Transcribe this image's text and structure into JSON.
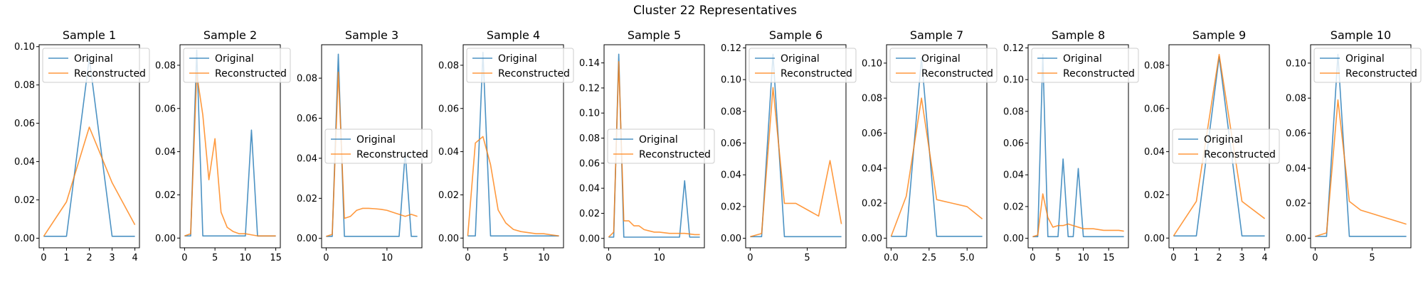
{
  "figure": {
    "title": "Cluster 22 Representatives"
  },
  "colors": {
    "original": "#1f77b4",
    "reconstructed": "#ff7f0e"
  },
  "legend_labels": [
    "Original",
    "Reconstructed"
  ],
  "chart_data": [
    {
      "type": "line",
      "title": "Sample 1",
      "xlim": [
        -0.2,
        4.2
      ],
      "ylim": [
        -0.005,
        0.101
      ],
      "xticks": [
        0,
        1,
        2,
        3,
        4
      ],
      "yticks": [
        0,
        0.02,
        0.04,
        0.06,
        0.08,
        0.1
      ],
      "ytick_labels": [
        "0.00",
        "0.02",
        "0.04",
        "0.06",
        "0.08",
        "0.10"
      ],
      "legend": "upper-left",
      "series": [
        {
          "name": "Original",
          "x": [
            0,
            1,
            2,
            3,
            4
          ],
          "y": [
            0.001,
            0.001,
            0.094,
            0.001,
            0.001
          ]
        },
        {
          "name": "Reconstructed",
          "x": [
            0,
            1,
            2,
            3,
            4
          ],
          "y": [
            0.001,
            0.019,
            0.058,
            0.029,
            0.007
          ]
        }
      ]
    },
    {
      "type": "line",
      "title": "Sample 2",
      "xlim": [
        -0.75,
        15.75
      ],
      "ylim": [
        -0.0045,
        0.0895
      ],
      "xticks": [
        0,
        5,
        10,
        15
      ],
      "yticks": [
        0,
        0.02,
        0.04,
        0.06,
        0.08
      ],
      "ytick_labels": [
        "0.00",
        "0.02",
        "0.04",
        "0.06",
        "0.08"
      ],
      "legend": "upper-left",
      "series": [
        {
          "name": "Original",
          "x": [
            0,
            1,
            2,
            3,
            4,
            5,
            6,
            7,
            8,
            9,
            10,
            11,
            12,
            13,
            14,
            15
          ],
          "y": [
            0.001,
            0.001,
            0.087,
            0.001,
            0.001,
            0.001,
            0.001,
            0.001,
            0.001,
            0.001,
            0.001,
            0.05,
            0.001,
            0.001,
            0.001,
            0.001
          ]
        },
        {
          "name": "Reconstructed",
          "x": [
            0,
            1,
            2,
            3,
            4,
            5,
            6,
            7,
            8,
            9,
            10,
            11,
            12,
            13,
            14,
            15
          ],
          "y": [
            0.001,
            0.002,
            0.076,
            0.057,
            0.027,
            0.046,
            0.012,
            0.005,
            0.003,
            0.002,
            0.002,
            0.0015,
            0.001,
            0.001,
            0.001,
            0.001
          ]
        }
      ]
    },
    {
      "type": "line",
      "title": "Sample 3",
      "xlim": [
        -0.75,
        15.75
      ],
      "ylim": [
        -0.0047,
        0.0967
      ],
      "xticks": [
        0,
        10
      ],
      "yticks": [
        0,
        0.02,
        0.04,
        0.06,
        0.08
      ],
      "ytick_labels": [
        "0.00",
        "0.02",
        "0.04",
        "0.06",
        "0.08"
      ],
      "legend": "center-left",
      "series": [
        {
          "name": "Original",
          "x": [
            0,
            1,
            2,
            3,
            4,
            5,
            6,
            7,
            8,
            9,
            10,
            11,
            12,
            13,
            14,
            15
          ],
          "y": [
            0.001,
            0.001,
            0.092,
            0.001,
            0.001,
            0.001,
            0.001,
            0.001,
            0.001,
            0.001,
            0.001,
            0.001,
            0.001,
            0.043,
            0.001,
            0.001
          ]
        },
        {
          "name": "Reconstructed",
          "x": [
            0,
            1,
            2,
            3,
            4,
            5,
            6,
            7,
            8,
            9,
            10,
            11,
            12,
            13,
            14,
            15
          ],
          "y": [
            0.001,
            0.002,
            0.083,
            0.01,
            0.011,
            0.014,
            0.015,
            0.015,
            0.0148,
            0.0145,
            0.014,
            0.013,
            0.012,
            0.011,
            0.012,
            0.011
          ]
        }
      ]
    },
    {
      "type": "line",
      "title": "Sample 4",
      "xlim": [
        -0.6,
        12.6
      ],
      "ylim": [
        -0.0045,
        0.0895
      ],
      "xticks": [
        0,
        5,
        10
      ],
      "yticks": [
        0,
        0.02,
        0.04,
        0.06,
        0.08
      ],
      "ytick_labels": [
        "0.00",
        "0.02",
        "0.04",
        "0.06",
        "0.08"
      ],
      "legend": "upper-left",
      "series": [
        {
          "name": "Original",
          "x": [
            0,
            1,
            2,
            3,
            4,
            5,
            6,
            7,
            8,
            9,
            10,
            11,
            12
          ],
          "y": [
            0.001,
            0.001,
            0.086,
            0.001,
            0.001,
            0.001,
            0.001,
            0.001,
            0.001,
            0.001,
            0.001,
            0.001,
            0.001
          ]
        },
        {
          "name": "Reconstructed",
          "x": [
            0,
            1,
            2,
            3,
            4,
            5,
            6,
            7,
            8,
            9,
            10,
            11,
            12
          ],
          "y": [
            0.001,
            0.044,
            0.047,
            0.034,
            0.013,
            0.007,
            0.004,
            0.003,
            0.0025,
            0.002,
            0.002,
            0.0015,
            0.001
          ]
        }
      ]
    },
    {
      "type": "line",
      "title": "Sample 5",
      "xlim": [
        -0.9,
        18.9
      ],
      "ylim": [
        -0.0075,
        0.1545
      ],
      "xticks": [
        0,
        10
      ],
      "yticks": [
        0,
        0.02,
        0.04,
        0.06,
        0.08,
        0.1,
        0.12,
        0.14
      ],
      "ytick_labels": [
        "0.00",
        "0.02",
        "0.04",
        "0.06",
        "0.08",
        "0.10",
        "0.12",
        "0.14"
      ],
      "legend": "center-left",
      "series": [
        {
          "name": "Original",
          "x": [
            0,
            1,
            2,
            3,
            4,
            5,
            6,
            7,
            8,
            9,
            10,
            11,
            12,
            13,
            14,
            15,
            16,
            17,
            18
          ],
          "y": [
            0.001,
            0.001,
            0.147,
            0.001,
            0.001,
            0.001,
            0.001,
            0.001,
            0.001,
            0.001,
            0.001,
            0.001,
            0.001,
            0.001,
            0.001,
            0.046,
            0.001,
            0.001,
            0.001
          ]
        },
        {
          "name": "Reconstructed",
          "x": [
            0,
            1,
            2,
            3,
            4,
            5,
            6,
            7,
            8,
            9,
            10,
            11,
            12,
            13,
            14,
            15,
            16,
            17,
            18
          ],
          "y": [
            0.001,
            0.005,
            0.141,
            0.014,
            0.014,
            0.01,
            0.01,
            0.007,
            0.006,
            0.005,
            0.005,
            0.0045,
            0.004,
            0.004,
            0.004,
            0.004,
            0.0035,
            0.003,
            0.003
          ]
        }
      ]
    },
    {
      "type": "line",
      "title": "Sample 6",
      "xlim": [
        -0.4,
        8.4
      ],
      "ylim": [
        -0.006,
        0.122
      ],
      "xticks": [
        0,
        5
      ],
      "yticks": [
        0,
        0.02,
        0.04,
        0.06,
        0.08,
        0.1,
        0.12
      ],
      "ytick_labels": [
        "0.00",
        "0.02",
        "0.04",
        "0.06",
        "0.08",
        "0.10",
        "0.12"
      ],
      "legend": "upper-left",
      "series": [
        {
          "name": "Original",
          "x": [
            0,
            1,
            2,
            3,
            4,
            5,
            6,
            7,
            8
          ],
          "y": [
            0.001,
            0.001,
            0.116,
            0.001,
            0.001,
            0.001,
            0.001,
            0.001,
            0.001
          ]
        },
        {
          "name": "Reconstructed",
          "x": [
            0,
            1,
            2,
            3,
            4,
            5,
            6,
            7,
            8
          ],
          "y": [
            0.001,
            0.003,
            0.095,
            0.022,
            0.022,
            0.018,
            0.014,
            0.049,
            0.009
          ]
        }
      ]
    },
    {
      "type": "line",
      "title": "Sample 7",
      "xlim": [
        -0.3,
        6.3
      ],
      "ylim": [
        -0.0055,
        0.1105
      ],
      "xticks": [
        0,
        2.5,
        5
      ],
      "xtick_labels": [
        "0.0",
        "2.5",
        "5.0"
      ],
      "yticks": [
        0,
        0.02,
        0.04,
        0.06,
        0.08,
        0.1
      ],
      "ytick_labels": [
        "0.00",
        "0.02",
        "0.04",
        "0.06",
        "0.08",
        "0.10"
      ],
      "legend": "upper-left",
      "series": [
        {
          "name": "Original",
          "x": [
            0,
            1,
            2,
            3,
            4,
            5,
            6
          ],
          "y": [
            0.001,
            0.001,
            0.103,
            0.001,
            0.001,
            0.001,
            0.001
          ]
        },
        {
          "name": "Reconstructed",
          "x": [
            0,
            1,
            2,
            3,
            4,
            5,
            6
          ],
          "y": [
            0.001,
            0.024,
            0.08,
            0.022,
            0.02,
            0.018,
            0.011
          ]
        }
      ]
    },
    {
      "type": "line",
      "title": "Sample 8",
      "xlim": [
        -0.9,
        18.9
      ],
      "ylim": [
        -0.006,
        0.122
      ],
      "xticks": [
        0,
        5,
        10,
        15
      ],
      "yticks": [
        0,
        0.02,
        0.04,
        0.06,
        0.08,
        0.1,
        0.12
      ],
      "ytick_labels": [
        "0.00",
        "0.02",
        "0.04",
        "0.06",
        "0.08",
        "0.10",
        "0.12"
      ],
      "legend": "upper-left",
      "series": [
        {
          "name": "Original",
          "x": [
            0,
            1,
            2,
            3,
            4,
            5,
            6,
            7,
            8,
            9,
            10,
            11,
            12,
            13,
            14,
            15,
            16,
            17,
            18
          ],
          "y": [
            0.001,
            0.001,
            0.116,
            0.001,
            0.001,
            0.001,
            0.05,
            0.001,
            0.001,
            0.044,
            0.001,
            0.001,
            0.001,
            0.001,
            0.001,
            0.001,
            0.001,
            0.001,
            0.001
          ]
        },
        {
          "name": "Reconstructed",
          "x": [
            0,
            1,
            2,
            3,
            4,
            5,
            6,
            7,
            8,
            9,
            10,
            11,
            12,
            13,
            14,
            15,
            16,
            17,
            18
          ],
          "y": [
            0.001,
            0.002,
            0.028,
            0.013,
            0.007,
            0.008,
            0.008,
            0.009,
            0.008,
            0.007,
            0.006,
            0.006,
            0.006,
            0.0055,
            0.005,
            0.005,
            0.005,
            0.005,
            0.0045
          ]
        }
      ]
    },
    {
      "type": "line",
      "title": "Sample 9",
      "xlim": [
        -0.2,
        4.2
      ],
      "ylim": [
        -0.0045,
        0.0895
      ],
      "xticks": [
        0,
        1,
        2,
        3,
        4
      ],
      "yticks": [
        0,
        0.02,
        0.04,
        0.06,
        0.08
      ],
      "ytick_labels": [
        "0.00",
        "0.02",
        "0.04",
        "0.06",
        "0.08"
      ],
      "legend": "center-left",
      "series": [
        {
          "name": "Original",
          "x": [
            0,
            1,
            2,
            3,
            4
          ],
          "y": [
            0.001,
            0.001,
            0.084,
            0.001,
            0.001
          ]
        },
        {
          "name": "Reconstructed",
          "x": [
            0,
            1,
            2,
            3,
            4
          ],
          "y": [
            0.001,
            0.017,
            0.085,
            0.017,
            0.009
          ]
        }
      ]
    },
    {
      "type": "line",
      "title": "Sample 10",
      "xlim": [
        -0.4,
        8.4
      ],
      "ylim": [
        -0.0055,
        0.1105
      ],
      "xticks": [
        0,
        5
      ],
      "yticks": [
        0,
        0.02,
        0.04,
        0.06,
        0.08,
        0.1
      ],
      "ytick_labels": [
        "0.00",
        "0.02",
        "0.04",
        "0.06",
        "0.08",
        "0.10"
      ],
      "legend": "upper-left",
      "series": [
        {
          "name": "Original",
          "x": [
            0,
            1,
            2,
            3,
            4,
            5,
            6,
            7,
            8
          ],
          "y": [
            0.001,
            0.001,
            0.105,
            0.001,
            0.001,
            0.001,
            0.001,
            0.001,
            0.001
          ]
        },
        {
          "name": "Reconstructed",
          "x": [
            0,
            1,
            2,
            3,
            4,
            5,
            6,
            7,
            8
          ],
          "y": [
            0.001,
            0.003,
            0.079,
            0.021,
            0.016,
            0.014,
            0.012,
            0.01,
            0.008
          ]
        }
      ]
    }
  ]
}
